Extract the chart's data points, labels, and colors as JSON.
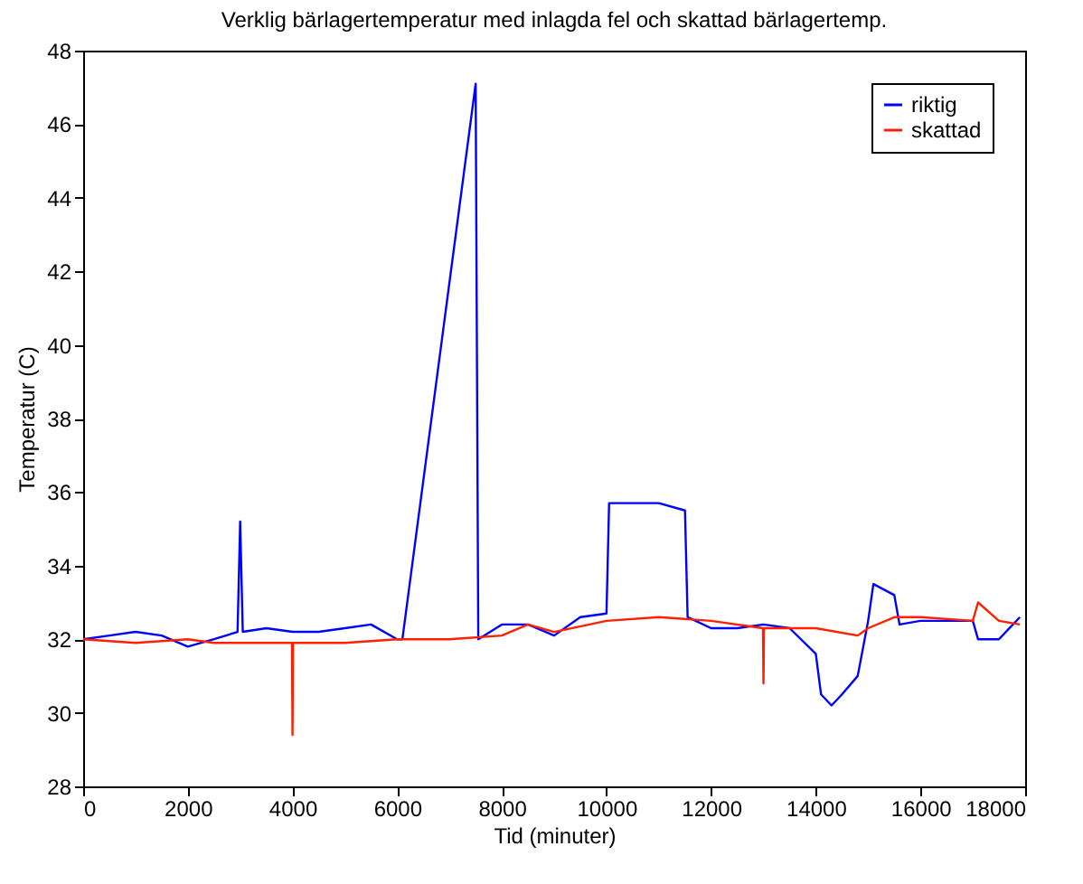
{
  "chart_data": {
    "type": "line",
    "title": "Verklig bärlagertemperatur med inlagda fel och skattad bärlagertemp.",
    "xlabel": "Tid (minuter)",
    "ylabel": "Temperatur (C)",
    "xlim": [
      0,
      18000
    ],
    "xticks": [
      0,
      2000,
      4000,
      6000,
      8000,
      10000,
      12000,
      14000,
      16000,
      18000
    ],
    "ylim": [
      28,
      48
    ],
    "yticks": [
      28,
      30,
      32,
      34,
      36,
      38,
      40,
      42,
      44,
      46,
      48
    ],
    "legend": "top right",
    "grid": false,
    "series": [
      {
        "name": "riktig",
        "color": "#0000ff",
        "x": [
          0,
          500,
          1000,
          1500,
          2000,
          2500,
          2950,
          3000,
          3050,
          3500,
          4000,
          4500,
          5000,
          5500,
          6000,
          6100,
          7500,
          7550,
          8000,
          8500,
          9000,
          9500,
          10000,
          10050,
          11000,
          11500,
          11550,
          12000,
          12500,
          13000,
          13500,
          14000,
          14100,
          14300,
          14500,
          14800,
          15000,
          15100,
          15500,
          15600,
          16000,
          16500,
          17000,
          17100,
          17500,
          17900
        ],
        "values": [
          32.0,
          32.1,
          32.2,
          32.1,
          31.8,
          32.0,
          32.2,
          35.2,
          32.2,
          32.3,
          32.2,
          32.2,
          32.3,
          32.4,
          32.0,
          32.0,
          47.1,
          32.0,
          32.4,
          32.4,
          32.1,
          32.6,
          32.7,
          35.7,
          35.7,
          35.5,
          32.6,
          32.3,
          32.3,
          32.4,
          32.3,
          31.6,
          30.5,
          30.2,
          30.5,
          31.0,
          32.5,
          33.5,
          33.2,
          32.4,
          32.5,
          32.5,
          32.5,
          32.0,
          32.0,
          32.6
        ]
      },
      {
        "name": "skattad",
        "color": "#ff2000",
        "x": [
          0,
          1000,
          2000,
          2500,
          3000,
          3990,
          4000,
          4010,
          5000,
          6000,
          7000,
          8000,
          8500,
          9000,
          10000,
          11000,
          12000,
          12990,
          13000,
          13010,
          14000,
          14800,
          15000,
          15500,
          16000,
          17000,
          17100,
          17500,
          17900
        ],
        "values": [
          32.0,
          31.9,
          32.0,
          31.9,
          31.9,
          31.9,
          29.4,
          31.9,
          31.9,
          32.0,
          32.0,
          32.1,
          32.4,
          32.2,
          32.5,
          32.6,
          32.5,
          32.3,
          30.8,
          32.3,
          32.3,
          32.1,
          32.3,
          32.6,
          32.6,
          32.5,
          33.0,
          32.5,
          32.4
        ]
      }
    ]
  }
}
